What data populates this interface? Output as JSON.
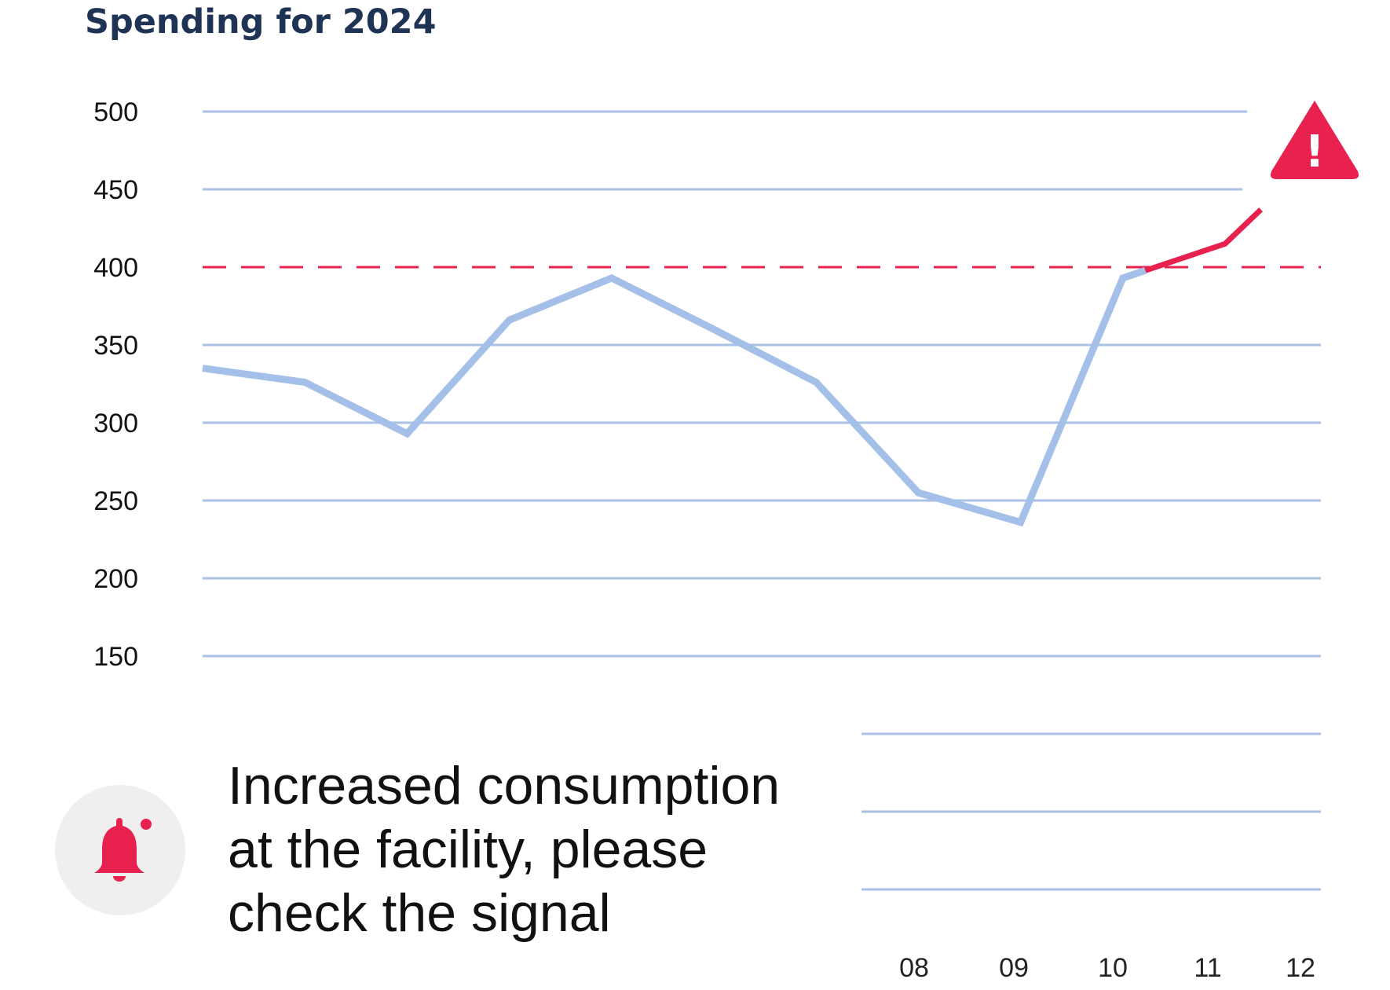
{
  "colors": {
    "title": "#1f3354",
    "grid": "#a9c2e6",
    "line_normal": "#a4c0e8",
    "line_alert": "#e8214f",
    "threshold": "#e8214f",
    "bell_bg": "#efefef",
    "bell": "#e8214f"
  },
  "icons": {
    "alert": "warning-triangle-icon",
    "bell": "bell-icon"
  },
  "notice": {
    "text_line1": "Increased consumption",
    "text_line2": "at the facility, please",
    "text_line3": "check the signal"
  },
  "chart_data": {
    "type": "line",
    "title": "Spending for 2024",
    "xlabel": "",
    "ylabel": "",
    "y_ticks": [
      "500",
      "450",
      "400",
      "350",
      "300",
      "250",
      "200",
      "150"
    ],
    "x_ticks": [
      "08",
      "09",
      "10",
      "11",
      "12"
    ],
    "ylim": [
      150,
      500
    ],
    "grid": true,
    "threshold": 400,
    "alert_icon_text": "!",
    "series": [
      {
        "values": [
          {
            "x": 0,
            "y": 335
          },
          {
            "x": 1,
            "y": 326
          },
          {
            "x": 2,
            "y": 293
          },
          {
            "x": 3,
            "y": 366
          },
          {
            "x": 4,
            "y": 393
          },
          {
            "x": 5,
            "y": 360
          },
          {
            "x": 6,
            "y": 326
          },
          {
            "x": 7,
            "y": 255
          },
          {
            "x": 8,
            "y": 236
          },
          {
            "x": 9,
            "y": 393
          },
          {
            "x": 10,
            "y": 415
          },
          {
            "x": 10.35,
            "y": 437
          }
        ]
      }
    ]
  }
}
